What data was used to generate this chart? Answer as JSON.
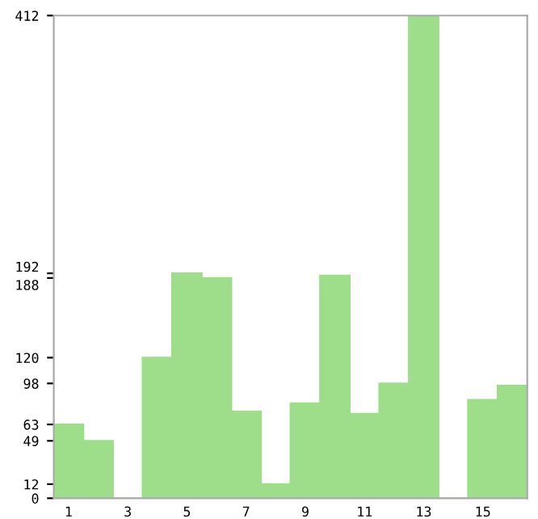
{
  "chart_data": {
    "type": "bar",
    "categories": [
      "1",
      null,
      "3",
      null,
      "5",
      null,
      "7",
      null,
      "9",
      null,
      "11",
      null,
      "13",
      null,
      "15",
      null
    ],
    "values": [
      63,
      49,
      0,
      120,
      192,
      188,
      74,
      12,
      81,
      190,
      72,
      98,
      412,
      0,
      84,
      96
    ],
    "color": "#9ede8a",
    "ylim": [
      0,
      412
    ],
    "yticks": [
      0,
      12,
      49,
      63,
      98,
      120,
      188,
      192,
      412
    ],
    "grid": false,
    "legend": false
  }
}
